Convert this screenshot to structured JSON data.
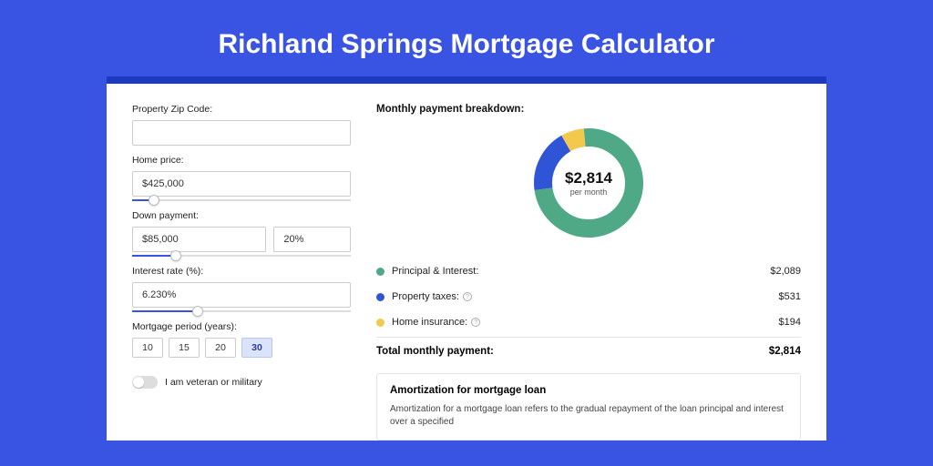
{
  "page": {
    "title": "Richland Springs Mortgage Calculator",
    "background_color": "#3953e2",
    "card_border_top_color": "#1d3abf"
  },
  "form": {
    "zip_label": "Property Zip Code:",
    "zip_value": "",
    "home_price_label": "Home price:",
    "home_price_value": "$425,000",
    "home_price_slider_pct": 10,
    "down_label": "Down payment:",
    "down_value": "$85,000",
    "down_pct_value": "20%",
    "down_slider_pct": 20,
    "rate_label": "Interest rate (%):",
    "rate_value": "6.230%",
    "rate_slider_pct": 30,
    "period_label": "Mortgage period (years):",
    "periods": [
      {
        "label": "10",
        "active": false
      },
      {
        "label": "15",
        "active": false
      },
      {
        "label": "20",
        "active": false
      },
      {
        "label": "30",
        "active": true
      }
    ],
    "veteran_label": "I am veteran or military",
    "veteran_on": false
  },
  "breakdown": {
    "title": "Monthly payment breakdown:",
    "total_display": "$2,814",
    "total_sub": "per month",
    "segments": [
      {
        "key": "principal",
        "label": "Principal & Interest:",
        "value_display": "$2,089",
        "value": 2089,
        "color": "#4fa886",
        "info": false
      },
      {
        "key": "taxes",
        "label": "Property taxes:",
        "value_display": "$531",
        "value": 531,
        "color": "#2f54d6",
        "info": true
      },
      {
        "key": "insurance",
        "label": "Home insurance:",
        "value_display": "$194",
        "value": 194,
        "color": "#f2c94c",
        "info": true
      }
    ],
    "total_label": "Total monthly payment:",
    "total_value": "$2,814",
    "donut": {
      "stroke_width": 20,
      "diameter": 130
    }
  },
  "amort": {
    "title": "Amortization for mortgage loan",
    "text": "Amortization for a mortgage loan refers to the gradual repayment of the loan principal and interest over a specified"
  }
}
